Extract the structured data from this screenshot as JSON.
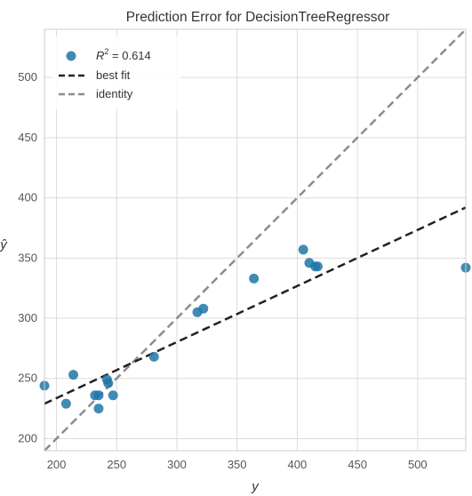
{
  "chart_data": {
    "type": "scatter",
    "title": "Prediction Error for DecisionTreeRegressor",
    "xlabel": "y",
    "ylabel": "ŷ",
    "xlim": [
      190,
      540
    ],
    "ylim": [
      190,
      540
    ],
    "x_ticks": [
      200,
      250,
      300,
      350,
      400,
      450,
      500
    ],
    "y_ticks": [
      200,
      250,
      300,
      350,
      400,
      450,
      500
    ],
    "grid": true,
    "legend_position": "top-left",
    "colors": {
      "points": "#1f77a8",
      "best_fit": "#222222",
      "identity": "#8c8c8c",
      "grid": "#dcdcdc",
      "frame": "#cccccc"
    },
    "points": [
      {
        "x": 190,
        "y": 244
      },
      {
        "x": 208,
        "y": 229
      },
      {
        "x": 214,
        "y": 253
      },
      {
        "x": 232,
        "y": 236
      },
      {
        "x": 235,
        "y": 236
      },
      {
        "x": 235,
        "y": 225
      },
      {
        "x": 242,
        "y": 249
      },
      {
        "x": 243,
        "y": 246
      },
      {
        "x": 247,
        "y": 236
      },
      {
        "x": 281,
        "y": 268
      },
      {
        "x": 317,
        "y": 305
      },
      {
        "x": 322,
        "y": 308
      },
      {
        "x": 364,
        "y": 333
      },
      {
        "x": 405,
        "y": 357
      },
      {
        "x": 410,
        "y": 346
      },
      {
        "x": 415,
        "y": 343
      },
      {
        "x": 417,
        "y": 343
      },
      {
        "x": 540,
        "y": 342
      }
    ],
    "best_fit": {
      "x1": 190,
      "y1": 229,
      "x2": 540,
      "y2": 392
    },
    "identity": {
      "x1": 190,
      "y1": 190,
      "x2": 540,
      "y2": 540
    },
    "legend": [
      {
        "type": "marker",
        "label_base": "R",
        "label_sup": "2",
        "label_rest": " = 0.614"
      },
      {
        "type": "dashed-dark",
        "label": "best fit"
      },
      {
        "type": "dashed-gray",
        "label": "identity"
      }
    ]
  }
}
